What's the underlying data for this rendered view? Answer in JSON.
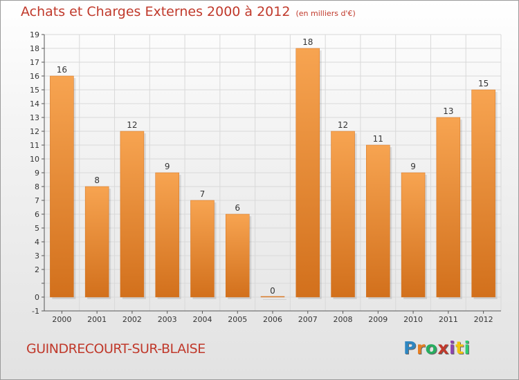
{
  "header": {
    "title": "Achats et Charges Externes 2000 à 2012",
    "unit": "(en milliers d'€)"
  },
  "footer": {
    "commune": "GUINDRECOURT-SUR-BLAISE",
    "logo_letters": [
      "P",
      "r",
      "o",
      "x",
      "i",
      "t",
      "i"
    ],
    "logo_colors": [
      "#2e86c1",
      "#e67e22",
      "#27ae60",
      "#c0392b",
      "#8e44ad",
      "#f1c40f",
      "#2ecc71"
    ]
  },
  "colors": {
    "bar_light": "#f7a451",
    "bar_dark": "#d2701c",
    "accent": "#c0392b",
    "grid": "#d9d9d9"
  },
  "chart_data": {
    "type": "bar",
    "title": "Achats et Charges Externes 2000 à 2012",
    "subtitle": "(en milliers d'€)",
    "categories": [
      "2000",
      "2001",
      "2002",
      "2003",
      "2004",
      "2005",
      "2006",
      "2007",
      "2008",
      "2009",
      "2010",
      "2011",
      "2012"
    ],
    "values": [
      16,
      8,
      12,
      9,
      7,
      6,
      0,
      18,
      12,
      11,
      9,
      13,
      15
    ],
    "ylim": [
      -1,
      19
    ],
    "yticks": [
      -1,
      0,
      2,
      3,
      4,
      5,
      6,
      7,
      8,
      9,
      10,
      11,
      12,
      13,
      14,
      15,
      16,
      17,
      18,
      19
    ],
    "grid": true,
    "legend": "none"
  }
}
